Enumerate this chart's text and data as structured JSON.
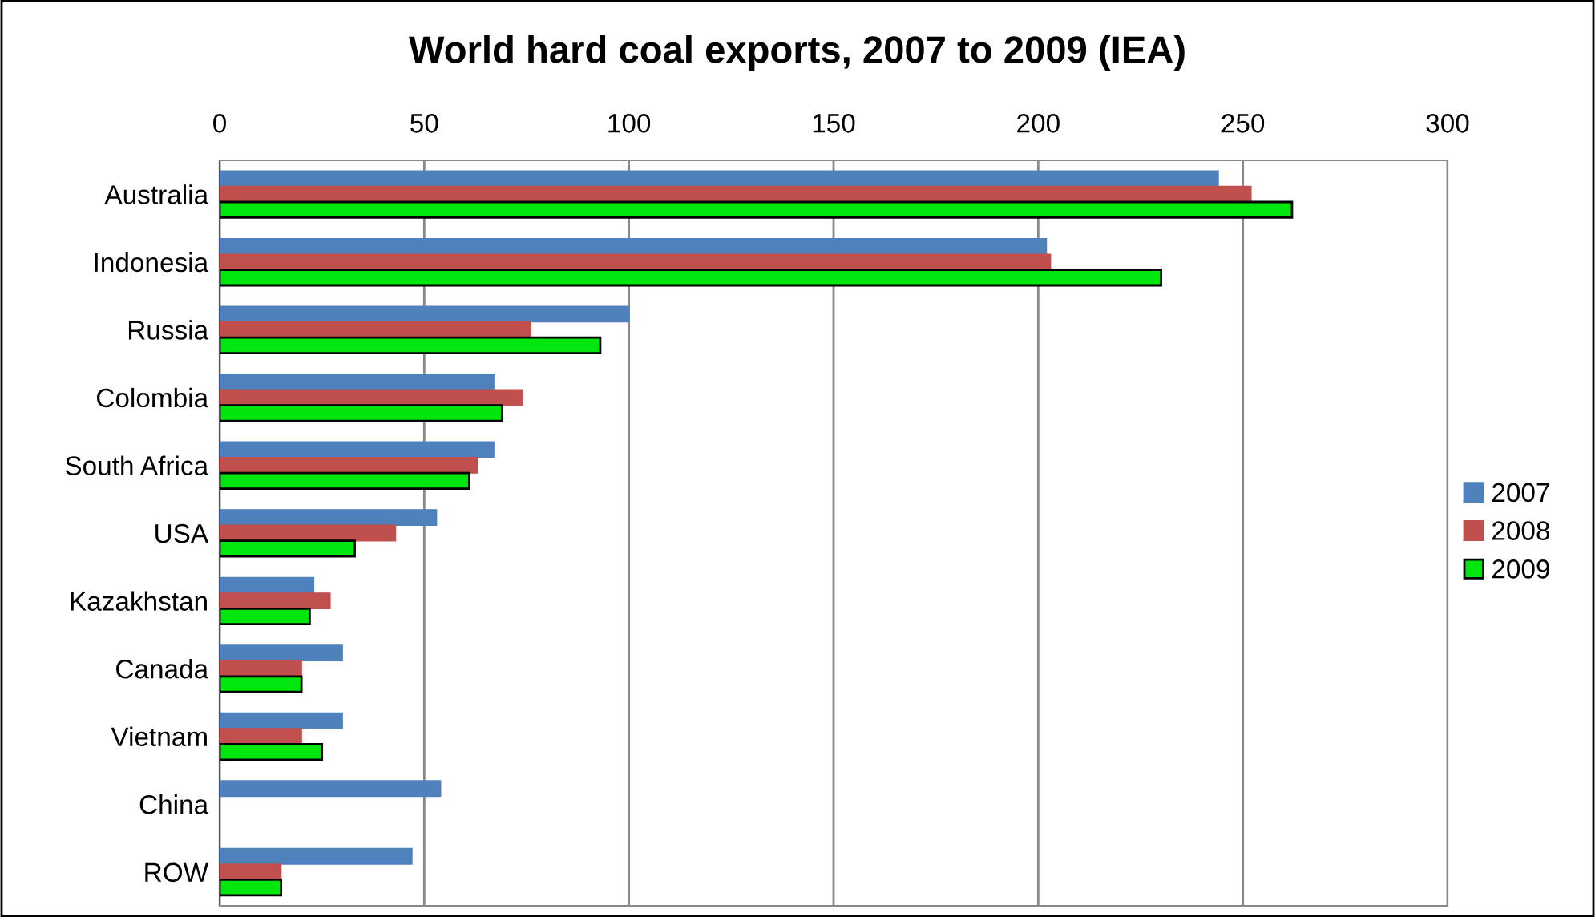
{
  "chart_data": {
    "type": "bar",
    "orientation": "horizontal",
    "title": "World hard coal exports, 2007 to 2009 (IEA)",
    "categories": [
      "Australia",
      "Indonesia",
      "Russia",
      "Colombia",
      "South Africa",
      "USA",
      "Kazakhstan",
      "Canada",
      "Vietnam",
      "China",
      "ROW"
    ],
    "series": [
      {
        "name": "2007",
        "color": "#4f81bd",
        "values": [
          244,
          202,
          100,
          67,
          67,
          53,
          23,
          30,
          30,
          54,
          47
        ]
      },
      {
        "name": "2008",
        "color": "#c0504d",
        "values": [
          252,
          203,
          76,
          74,
          63,
          43,
          27,
          20,
          20,
          null,
          15
        ]
      },
      {
        "name": "2009",
        "color": "#00e60e",
        "values": [
          262,
          230,
          93,
          69,
          61,
          33,
          22,
          20,
          25,
          null,
          15
        ]
      }
    ],
    "xlim": [
      0,
      300
    ],
    "xticks": [
      0,
      50,
      100,
      150,
      200,
      250,
      300
    ],
    "grid": "x",
    "legend": "right"
  }
}
